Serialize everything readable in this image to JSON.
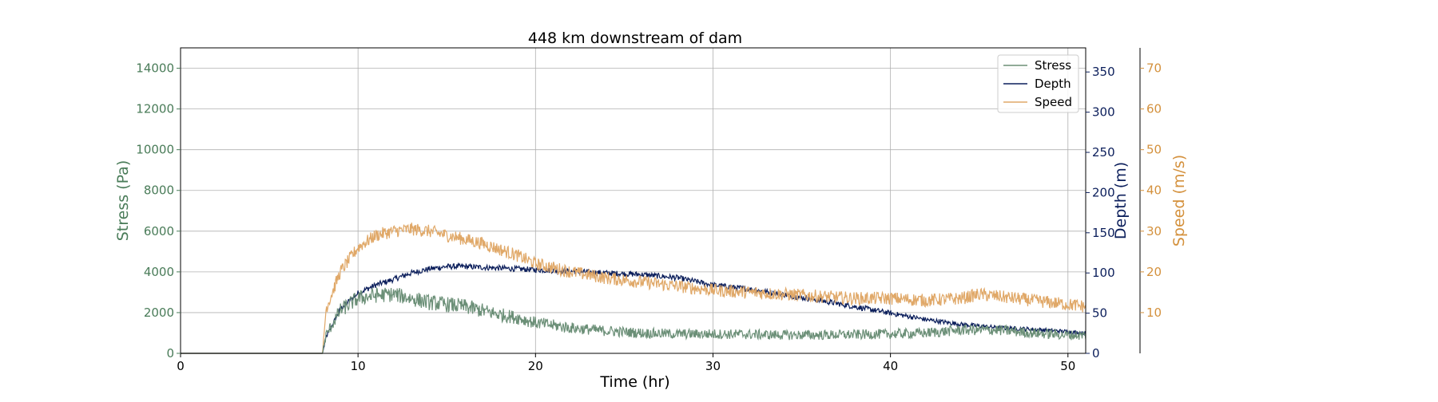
{
  "chart_data": {
    "type": "line",
    "title": "448 km downstream of dam",
    "xlabel": "Time (hr)",
    "xlim": [
      0,
      51
    ],
    "x_ticks": [
      0,
      10,
      20,
      30,
      40,
      50
    ],
    "grid": true,
    "legend_position": "top-right",
    "axes": [
      {
        "id": "stress",
        "label": "Stress (Pa)",
        "side": "left",
        "color": "#4a7c59",
        "ylim": [
          0,
          15000
        ],
        "ticks": [
          0,
          2000,
          4000,
          6000,
          8000,
          10000,
          12000,
          14000
        ]
      },
      {
        "id": "depth",
        "label": "Depth (m)",
        "side": "right",
        "color": "#0b1e5b",
        "ylim": [
          0,
          380
        ],
        "ticks": [
          0,
          50,
          100,
          150,
          200,
          250,
          300,
          350
        ]
      },
      {
        "id": "speed",
        "label": "Speed (m/s)",
        "side": "right-offset",
        "color": "#d4913d",
        "ylim": [
          0,
          75
        ],
        "ticks": [
          10,
          20,
          30,
          40,
          50,
          60,
          70
        ]
      }
    ],
    "series": [
      {
        "name": "Stress",
        "axis": "stress",
        "color": "#6b8f77",
        "x": [
          0,
          8,
          8.2,
          9,
          10,
          11,
          12,
          13,
          14,
          15,
          16,
          17,
          18,
          19,
          20,
          22,
          24,
          26,
          28,
          30,
          32,
          34,
          36,
          38,
          40,
          42,
          44,
          46,
          48,
          50,
          51
        ],
        "y": [
          0,
          0,
          900,
          2100,
          2700,
          2850,
          2900,
          2700,
          2500,
          2400,
          2300,
          2100,
          1900,
          1750,
          1500,
          1250,
          1100,
          1000,
          950,
          950,
          930,
          900,
          900,
          920,
          950,
          1000,
          1150,
          1150,
          1000,
          900,
          880
        ],
        "noise": 380
      },
      {
        "name": "Depth",
        "axis": "depth",
        "color": "#0b1e5b",
        "x": [
          0,
          8,
          8.2,
          9,
          10,
          11,
          12,
          13,
          14,
          15,
          16,
          17,
          18,
          19,
          20,
          22,
          24,
          26,
          28,
          30,
          32,
          34,
          36,
          38,
          40,
          42,
          44,
          46,
          48,
          50,
          51
        ],
        "y": [
          0,
          0,
          20,
          55,
          75,
          85,
          92,
          100,
          105,
          108,
          108,
          107,
          106,
          105,
          104,
          102,
          100,
          98,
          94,
          85,
          80,
          73,
          66,
          58,
          50,
          42,
          36,
          32,
          30,
          27,
          25
        ],
        "noise": 3.5
      },
      {
        "name": "Speed",
        "axis": "speed",
        "color": "#e0a868",
        "x": [
          0,
          8,
          8.2,
          9,
          10,
          11,
          12,
          13,
          14,
          15,
          16,
          17,
          18,
          19,
          20,
          22,
          24,
          26,
          28,
          30,
          32,
          34,
          36,
          38,
          40,
          42,
          44,
          45,
          46,
          48,
          50,
          51
        ],
        "y": [
          0,
          0,
          11,
          20,
          26,
          29,
          30,
          30.5,
          30,
          29,
          28,
          27,
          25.5,
          24,
          22,
          20,
          18.5,
          17.5,
          16.5,
          15.5,
          15,
          14.5,
          14,
          13.5,
          13.5,
          13,
          13.5,
          14.5,
          14,
          13,
          12,
          11.5
        ],
        "noise": 1.6
      }
    ]
  }
}
